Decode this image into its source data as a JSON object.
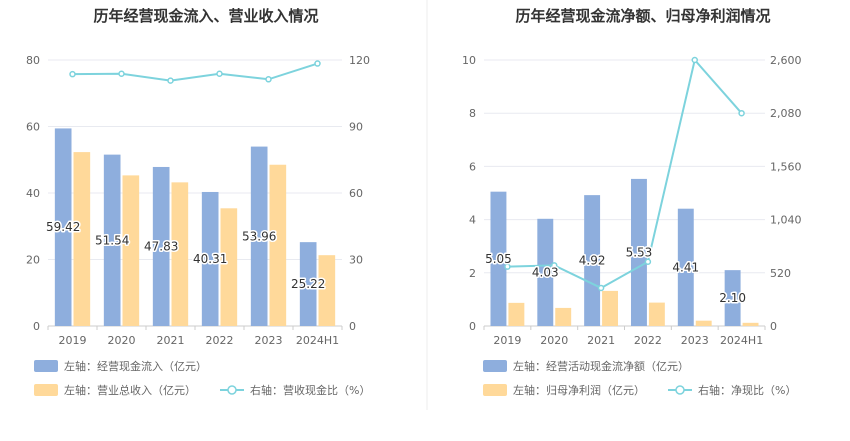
{
  "colors": {
    "bar_primary": "#8EAEDD",
    "bar_secondary": "#FFD99A",
    "line": "#7DD3DD",
    "grid": "#E8EAF0",
    "divider": "#EEEEEE"
  },
  "chart_data": [
    {
      "type": "bar",
      "title": "历年经营现金流入、营业收入情况",
      "categories": [
        "2019",
        "2020",
        "2021",
        "2022",
        "2023",
        "2024H1"
      ],
      "left_axis": {
        "min": 0,
        "max": 80,
        "ticks": [
          "0",
          "20",
          "40",
          "60",
          "80"
        ]
      },
      "right_axis": {
        "min": 0,
        "max": 120,
        "ticks": [
          "0",
          "30",
          "60",
          "90",
          "120"
        ]
      },
      "series": [
        {
          "name": "左轴：经营现金流入（亿元）",
          "axis": "left",
          "kind": "bar",
          "values": [
            59.42,
            51.54,
            47.83,
            40.31,
            53.96,
            25.22
          ],
          "labels": [
            "59.42",
            "51.54",
            "47.83",
            "40.31",
            "53.96",
            "25.22"
          ]
        },
        {
          "name": "左轴：营业总收入（亿元）",
          "axis": "left",
          "kind": "bar",
          "values": [
            52.3,
            45.3,
            43.2,
            35.4,
            48.5,
            21.3
          ]
        },
        {
          "name": "右轴：营收现金比（%）",
          "axis": "right",
          "kind": "line",
          "values": [
            113.6,
            113.8,
            110.7,
            113.8,
            111.3,
            118.4
          ]
        }
      ],
      "legend_position": "bottom",
      "grid": true
    },
    {
      "type": "bar",
      "title": "历年经营现金流净额、归母净利润情况",
      "categories": [
        "2019",
        "2020",
        "2021",
        "2022",
        "2023",
        "2024H1"
      ],
      "left_axis": {
        "min": 0,
        "max": 10,
        "ticks": [
          "0",
          "2",
          "4",
          "6",
          "8",
          "10"
        ]
      },
      "right_axis": {
        "min": 0,
        "max": 2600,
        "ticks": [
          "0",
          "520",
          "1,040",
          "1,560",
          "2,080",
          "2,600"
        ]
      },
      "series": [
        {
          "name": "左轴：经营活动现金流净额（亿元）",
          "axis": "left",
          "kind": "bar",
          "values": [
            5.05,
            4.03,
            4.92,
            5.53,
            4.41,
            2.1
          ],
          "labels": [
            "5.05",
            "4.03",
            "4.92",
            "5.53",
            "4.41",
            "2.10"
          ]
        },
        {
          "name": "左轴：归母净利润（亿元）",
          "axis": "left",
          "kind": "bar",
          "values": [
            0.87,
            0.68,
            1.32,
            0.88,
            0.2,
            0.12
          ]
        },
        {
          "name": "右轴：净现比（%）",
          "axis": "right",
          "kind": "line",
          "values": [
            580,
            593,
            372,
            628,
            2600,
            2080
          ]
        }
      ],
      "legend_position": "bottom",
      "grid": true
    }
  ]
}
